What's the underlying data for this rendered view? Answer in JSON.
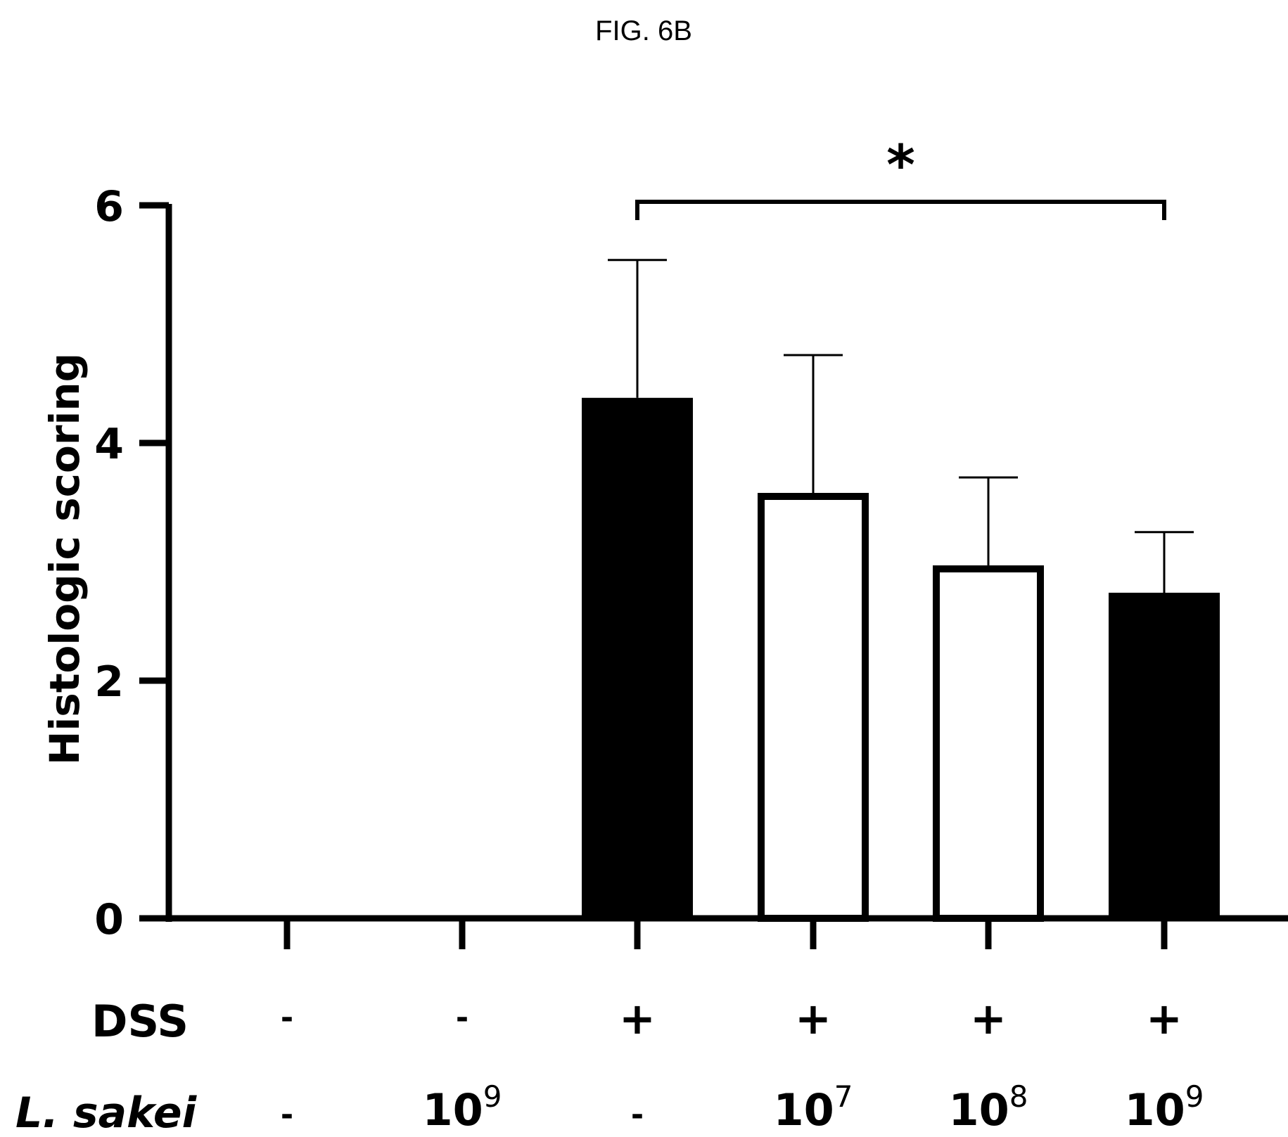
{
  "figure_label": "FIG. 6B",
  "chart_data": {
    "type": "bar",
    "title": "",
    "ylabel": "Histologic scoring",
    "xlabel": "",
    "ylim": [
      0,
      6
    ],
    "yticks": [
      "0",
      "2",
      "4",
      "6"
    ],
    "grid": false,
    "legend": "none",
    "row_labels": {
      "dss": "DSS",
      "lsakei": "L. sakei"
    },
    "categories": [
      {
        "dss": "-",
        "lsakei_base": "-",
        "lsakei_exp": ""
      },
      {
        "dss": "-",
        "lsakei_base": "10",
        "lsakei_exp": "9"
      },
      {
        "dss": "+",
        "lsakei_base": "-",
        "lsakei_exp": ""
      },
      {
        "dss": "+",
        "lsakei_base": "10",
        "lsakei_exp": "7"
      },
      {
        "dss": "+",
        "lsakei_base": "10",
        "lsakei_exp": "8"
      },
      {
        "dss": "+",
        "lsakei_base": "10",
        "lsakei_exp": "9"
      }
    ],
    "values": [
      0,
      0,
      4.38,
      3.58,
      2.97,
      2.74
    ],
    "errors": [
      0,
      0,
      1.16,
      1.16,
      0.74,
      0.51
    ],
    "bar_fill": [
      "#000000",
      "#000000",
      "#000000",
      "#ffffff",
      "#ffffff",
      "#000000"
    ],
    "significance": {
      "from_index": 2,
      "to_index": 5,
      "label": "*"
    }
  }
}
